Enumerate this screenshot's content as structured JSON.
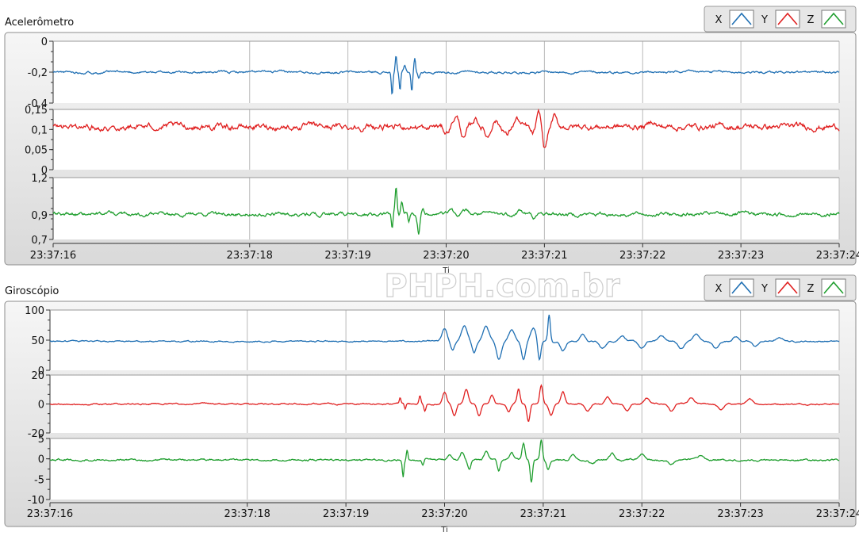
{
  "watermark": "PHPH.com.br",
  "legend_items": [
    {
      "label": "X",
      "color": "#1f6fb3",
      "icon": "line-sample-icon"
    },
    {
      "label": "Y",
      "color": "#e02020",
      "icon": "line-sample-icon"
    },
    {
      "label": "Z",
      "color": "#1f9e2e",
      "icon": "line-sample-icon"
    }
  ],
  "x_ticks": [
    "23:37:16",
    "23:37:18",
    "23:37:19",
    "23:37:20",
    "23:37:21",
    "23:37:22",
    "23:37:23",
    "23:37:24"
  ],
  "chart_data": [
    {
      "type": "line",
      "title": "Acelerômetro",
      "grid": true,
      "legend": "top-right",
      "x_axis_label": "Ti",
      "x": [
        "23:37:16",
        "23:37:18",
        "23:37:19",
        "23:37:20",
        "23:37:21",
        "23:37:22",
        "23:37:23",
        "23:37:24"
      ],
      "series": [
        {
          "name": "X",
          "color": "#1f6fb3",
          "ylim": [
            -0.4,
            0
          ],
          "y_ticks": [
            "0",
            "-0,2",
            "-0,4"
          ],
          "y_tick_values": [
            0,
            -0.2,
            -0.4
          ],
          "baseline": -0.2,
          "noise": 0.004,
          "events": [
            {
              "t": 3.45,
              "amp": -0.15,
              "w": 0.008
            },
            {
              "t": 3.49,
              "amp": 0.11,
              "w": 0.008
            },
            {
              "t": 3.53,
              "amp": -0.12,
              "w": 0.008
            },
            {
              "t": 3.58,
              "amp": 0.04,
              "w": 0.01
            },
            {
              "t": 3.65,
              "amp": -0.12,
              "w": 0.008
            },
            {
              "t": 3.68,
              "amp": 0.09,
              "w": 0.008
            },
            {
              "t": 3.72,
              "amp": -0.04,
              "w": 0.01
            }
          ]
        },
        {
          "name": "Y",
          "color": "#e02020",
          "ylim": [
            0,
            0.15
          ],
          "y_ticks": [
            "0,15",
            "0,1",
            "0,05",
            "0"
          ],
          "y_tick_values": [
            0.15,
            0.1,
            0.05,
            0
          ],
          "baseline": 0.107,
          "noise": 0.004,
          "events": [
            {
              "t": 3.45,
              "amp": -0.01,
              "w": 0.02
            },
            {
              "t": 3.8,
              "amp": -0.012,
              "w": 0.02
            },
            {
              "t": 4.0,
              "amp": -0.015,
              "w": 0.025
            },
            {
              "t": 4.1,
              "amp": 0.025,
              "w": 0.03
            },
            {
              "t": 4.18,
              "amp": -0.03,
              "w": 0.025
            },
            {
              "t": 4.3,
              "amp": 0.02,
              "w": 0.025
            },
            {
              "t": 4.42,
              "amp": -0.025,
              "w": 0.025
            },
            {
              "t": 4.5,
              "amp": 0.018,
              "w": 0.025
            },
            {
              "t": 4.62,
              "amp": -0.02,
              "w": 0.025
            },
            {
              "t": 4.72,
              "amp": 0.02,
              "w": 0.025
            },
            {
              "t": 4.88,
              "amp": -0.02,
              "w": 0.025
            },
            {
              "t": 4.95,
              "amp": 0.035,
              "w": 0.025
            },
            {
              "t": 5.0,
              "amp": -0.058,
              "w": 0.025
            },
            {
              "t": 5.1,
              "amp": 0.025,
              "w": 0.02
            },
            {
              "t": 6.1,
              "amp": 0.015,
              "w": 0.03
            }
          ]
        },
        {
          "name": "Z",
          "color": "#1f9e2e",
          "ylim": [
            0.7,
            1.2
          ],
          "y_ticks": [
            "1,2",
            "0,9",
            "0,7"
          ],
          "y_tick_values": [
            1.2,
            0.9,
            0.7
          ],
          "baseline": 0.905,
          "noise": 0.008,
          "events": [
            {
              "t": 3.45,
              "amp": -0.12,
              "w": 0.008
            },
            {
              "t": 3.49,
              "amp": 0.22,
              "w": 0.01
            },
            {
              "t": 3.55,
              "amp": 0.1,
              "w": 0.01
            },
            {
              "t": 3.62,
              "amp": -0.06,
              "w": 0.01
            },
            {
              "t": 3.72,
              "amp": -0.15,
              "w": 0.012
            },
            {
              "t": 3.76,
              "amp": 0.05,
              "w": 0.012
            },
            {
              "t": 4.05,
              "amp": 0.04,
              "w": 0.02
            },
            {
              "t": 4.2,
              "amp": 0.03,
              "w": 0.025
            },
            {
              "t": 4.75,
              "amp": 0.03,
              "w": 0.025
            },
            {
              "t": 4.9,
              "amp": -0.03,
              "w": 0.025
            }
          ]
        }
      ]
    },
    {
      "type": "line",
      "title": "Giroscópio",
      "grid": true,
      "legend": "top-right",
      "x_axis_label": "Ti",
      "x": [
        "23:37:16",
        "23:37:18",
        "23:37:19",
        "23:37:20",
        "23:37:21",
        "23:37:22",
        "23:37:23",
        "23:37:24"
      ],
      "series": [
        {
          "name": "X",
          "color": "#1f6fb3",
          "ylim": [
            0,
            100
          ],
          "y_ticks": [
            "100",
            "50",
            "0"
          ],
          "y_tick_values": [
            100,
            50,
            0
          ],
          "baseline": 48,
          "noise": 0.6,
          "events": [
            {
              "t": 4.0,
              "amp": 20,
              "w": 0.025
            },
            {
              "t": 4.08,
              "amp": -15,
              "w": 0.02
            },
            {
              "t": 4.2,
              "amp": 25,
              "w": 0.03
            },
            {
              "t": 4.3,
              "amp": -20,
              "w": 0.02
            },
            {
              "t": 4.42,
              "amp": 25,
              "w": 0.03
            },
            {
              "t": 4.55,
              "amp": -30,
              "w": 0.025
            },
            {
              "t": 4.68,
              "amp": 20,
              "w": 0.03
            },
            {
              "t": 4.8,
              "amp": -30,
              "w": 0.02
            },
            {
              "t": 4.9,
              "amp": 22,
              "w": 0.03
            },
            {
              "t": 4.96,
              "amp": -33,
              "w": 0.015
            },
            {
              "t": 5.06,
              "amp": 45,
              "w": 0.012
            },
            {
              "t": 5.2,
              "amp": -15,
              "w": 0.025
            },
            {
              "t": 5.4,
              "amp": 12,
              "w": 0.025
            },
            {
              "t": 5.6,
              "amp": -12,
              "w": 0.03
            },
            {
              "t": 5.8,
              "amp": 10,
              "w": 0.03
            },
            {
              "t": 6.0,
              "amp": -12,
              "w": 0.03
            },
            {
              "t": 6.2,
              "amp": 10,
              "w": 0.03
            },
            {
              "t": 6.4,
              "amp": -12,
              "w": 0.03
            },
            {
              "t": 6.55,
              "amp": 12,
              "w": 0.03
            },
            {
              "t": 6.75,
              "amp": -12,
              "w": 0.03
            },
            {
              "t": 6.95,
              "amp": 8,
              "w": 0.03
            },
            {
              "t": 7.15,
              "amp": -8,
              "w": 0.03
            },
            {
              "t": 7.4,
              "amp": 5,
              "w": 0.04
            }
          ]
        },
        {
          "name": "Y",
          "color": "#e02020",
          "ylim": [
            -20,
            20
          ],
          "y_ticks": [
            "20",
            "0",
            "-20"
          ],
          "y_tick_values": [
            20,
            0,
            -20
          ],
          "baseline": 0,
          "noise": 0.25,
          "events": [
            {
              "t": 3.55,
              "amp": 4,
              "w": 0.008
            },
            {
              "t": 3.6,
              "amp": -4,
              "w": 0.008
            },
            {
              "t": 3.75,
              "amp": 6,
              "w": 0.01
            },
            {
              "t": 3.8,
              "amp": -5,
              "w": 0.01
            },
            {
              "t": 4.0,
              "amp": 8,
              "w": 0.02
            },
            {
              "t": 4.1,
              "amp": -8,
              "w": 0.02
            },
            {
              "t": 4.22,
              "amp": 10,
              "w": 0.02
            },
            {
              "t": 4.35,
              "amp": -8,
              "w": 0.02
            },
            {
              "t": 4.48,
              "amp": 6,
              "w": 0.02
            },
            {
              "t": 4.65,
              "amp": -6,
              "w": 0.02
            },
            {
              "t": 4.75,
              "amp": 10,
              "w": 0.015
            },
            {
              "t": 4.85,
              "amp": -12,
              "w": 0.015
            },
            {
              "t": 4.98,
              "amp": 13,
              "w": 0.015
            },
            {
              "t": 5.08,
              "amp": -8,
              "w": 0.02
            },
            {
              "t": 5.2,
              "amp": 8,
              "w": 0.02
            },
            {
              "t": 5.45,
              "amp": -5,
              "w": 0.025
            },
            {
              "t": 5.65,
              "amp": 5,
              "w": 0.025
            },
            {
              "t": 5.85,
              "amp": -5,
              "w": 0.025
            },
            {
              "t": 6.05,
              "amp": 4,
              "w": 0.025
            },
            {
              "t": 6.3,
              "amp": -5,
              "w": 0.025
            },
            {
              "t": 6.5,
              "amp": 4,
              "w": 0.025
            },
            {
              "t": 6.8,
              "amp": -4,
              "w": 0.03
            },
            {
              "t": 7.1,
              "amp": 3,
              "w": 0.03
            }
          ]
        },
        {
          "name": "Z",
          "color": "#1f9e2e",
          "ylim": [
            -10,
            5
          ],
          "y_ticks": [
            "5",
            "0",
            "-5",
            "-10"
          ],
          "y_tick_values": [
            5,
            0,
            -5,
            -10
          ],
          "baseline": -0.3,
          "noise": 0.12,
          "events": [
            {
              "t": 3.58,
              "amp": -4,
              "w": 0.008
            },
            {
              "t": 3.62,
              "amp": 2.5,
              "w": 0.008
            },
            {
              "t": 3.78,
              "amp": -1.5,
              "w": 0.01
            },
            {
              "t": 4.05,
              "amp": 1.5,
              "w": 0.02
            },
            {
              "t": 4.18,
              "amp": 2.0,
              "w": 0.02
            },
            {
              "t": 4.25,
              "amp": -2.0,
              "w": 0.015
            },
            {
              "t": 4.42,
              "amp": 2.0,
              "w": 0.02
            },
            {
              "t": 4.55,
              "amp": -3.0,
              "w": 0.015
            },
            {
              "t": 4.68,
              "amp": 1.5,
              "w": 0.02
            },
            {
              "t": 4.8,
              "amp": 4.0,
              "w": 0.015
            },
            {
              "t": 4.88,
              "amp": -5.5,
              "w": 0.012
            },
            {
              "t": 4.98,
              "amp": 5.0,
              "w": 0.012
            },
            {
              "t": 5.05,
              "amp": -2.5,
              "w": 0.015
            },
            {
              "t": 5.3,
              "amp": 1.5,
              "w": 0.025
            },
            {
              "t": 5.5,
              "amp": -1.0,
              "w": 0.025
            },
            {
              "t": 5.7,
              "amp": 1.5,
              "w": 0.025
            },
            {
              "t": 6.0,
              "amp": 1.2,
              "w": 0.03
            },
            {
              "t": 6.3,
              "amp": -1.0,
              "w": 0.03
            },
            {
              "t": 6.6,
              "amp": 1.0,
              "w": 0.03
            }
          ]
        }
      ]
    }
  ]
}
